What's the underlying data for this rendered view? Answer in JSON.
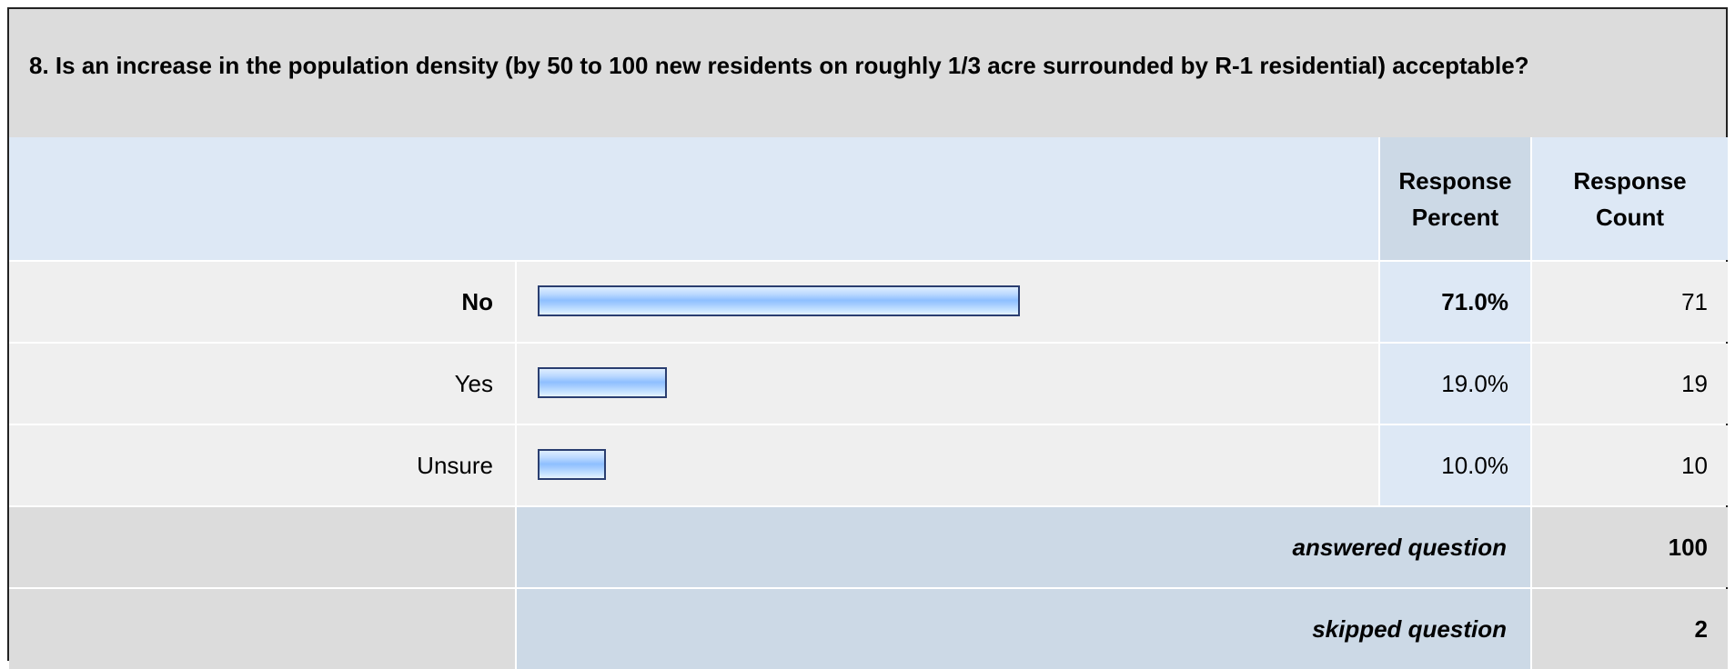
{
  "question": {
    "title": "8. Is an increase in the population density (by 50 to 100 new residents on roughly 1/3 acre surrounded by R-1 residential) acceptable?"
  },
  "headers": {
    "percent_line1": "Response",
    "percent_line2": "Percent",
    "count_line1": "Response",
    "count_line2": "Count"
  },
  "colors": {
    "bar_fill": "#8ebfff",
    "bar_border": "#2a3e70",
    "header_bg": "#dde8f5",
    "title_bg": "#dcdcdc"
  },
  "chart_data": {
    "type": "bar",
    "orientation": "horizontal",
    "categories": [
      "No",
      "Yes",
      "Unsure"
    ],
    "values": [
      71.0,
      19.0,
      10.0
    ],
    "xlim": [
      0,
      100
    ]
  },
  "rows": [
    {
      "label": "No",
      "percent_text": "71.0%",
      "count": "71",
      "bold": true
    },
    {
      "label": "Yes",
      "percent_text": "19.0%",
      "count": "19",
      "bold": false
    },
    {
      "label": "Unsure",
      "percent_text": "10.0%",
      "count": "10",
      "bold": false
    }
  ],
  "summary": {
    "answered_label": "answered question",
    "answered_value": "100",
    "skipped_label": "skipped question",
    "skipped_value": "2"
  }
}
